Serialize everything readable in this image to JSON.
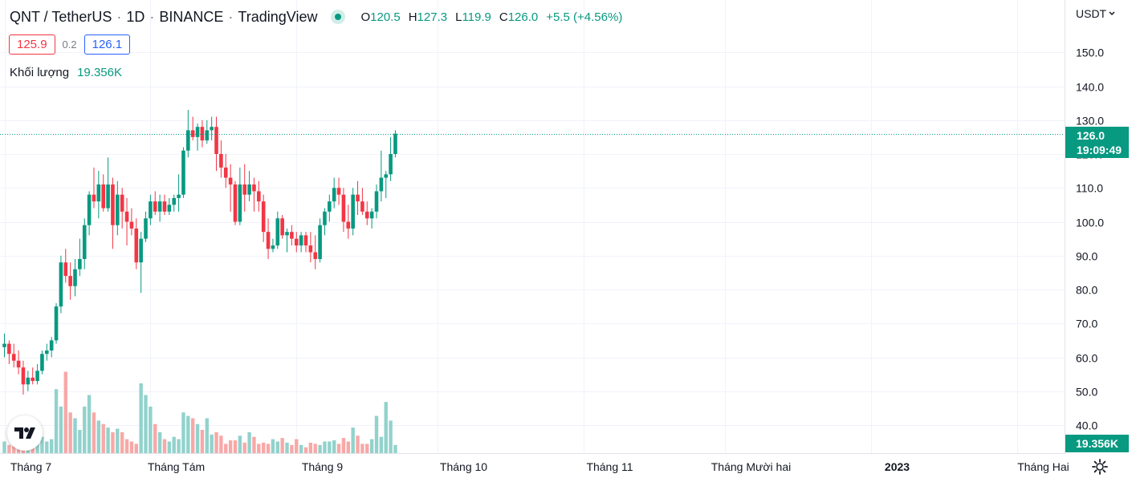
{
  "header": {
    "symbol": "QNT / TetherUS",
    "interval": "1D",
    "exchange": "BINANCE",
    "source": "TradingView",
    "open_label": "O",
    "open": "120.5",
    "high_label": "H",
    "high": "127.3",
    "low_label": "L",
    "low": "119.9",
    "close_label": "C",
    "close": "126.0",
    "change": "+5.5 (+4.56%)"
  },
  "bid": "125.9",
  "spread": "0.2",
  "ask": "126.1",
  "volume_legend": {
    "label": "Khối lượng",
    "value": "19.356K"
  },
  "currency": "USDT",
  "last_price_tag": {
    "price": "126.0",
    "countdown": "19:09:49"
  },
  "volume_tag": "19.356K",
  "colors": {
    "up": "#089981",
    "down": "#f23645",
    "up_vol": "#92d2cc",
    "down_vol": "#f7a9a7"
  },
  "chart_data": {
    "type": "candlestick",
    "title": "QNT / TetherUS · 1D · BINANCE",
    "y_ticks": [
      "40.0",
      "50.0",
      "60.0",
      "70.0",
      "80.0",
      "90.0",
      "100.0",
      "110.0",
      "120.0",
      "130.0",
      "140.0",
      "150.0"
    ],
    "ylim": [
      32,
      162
    ],
    "x_labels": [
      {
        "text": "Tháng 7",
        "bar": 0
      },
      {
        "text": "Tháng Tám",
        "bar": 31
      },
      {
        "text": "Tháng 9",
        "bar": 62
      },
      {
        "text": "Tháng 10",
        "bar": 92
      },
      {
        "text": "Tháng 11",
        "bar": 123
      },
      {
        "text": "Tháng Mười hai",
        "bar": 153
      },
      {
        "text": "2023",
        "bar": 184
      },
      {
        "text": "Tháng Hai",
        "bar": 215
      }
    ],
    "last_price": 126.0,
    "candles": [
      [
        63,
        67,
        60,
        64,
        10
      ],
      [
        64,
        65,
        58,
        61,
        7
      ],
      [
        61,
        64,
        57,
        59,
        6
      ],
      [
        59,
        62,
        55,
        57,
        5
      ],
      [
        57,
        59,
        49,
        52,
        8
      ],
      [
        52,
        56,
        50,
        54,
        6
      ],
      [
        54,
        57,
        52,
        53,
        5
      ],
      [
        53,
        58,
        52,
        56,
        9
      ],
      [
        56,
        62,
        55,
        61,
        14
      ],
      [
        61,
        64,
        59,
        62,
        10
      ],
      [
        62,
        66,
        60,
        65,
        12
      ],
      [
        65,
        76,
        64,
        75,
        55
      ],
      [
        75,
        90,
        73,
        88,
        40
      ],
      [
        88,
        92,
        82,
        84,
        70
      ],
      [
        84,
        88,
        77,
        81,
        35
      ],
      [
        81,
        89,
        78,
        86,
        30
      ],
      [
        86,
        95,
        84,
        89,
        20
      ],
      [
        89,
        101,
        86,
        99,
        40
      ],
      [
        99,
        109,
        96,
        108,
        50
      ],
      [
        108,
        116,
        104,
        106,
        35
      ],
      [
        106,
        115,
        101,
        111,
        28
      ],
      [
        111,
        114,
        103,
        104,
        25
      ],
      [
        104,
        119,
        103,
        111,
        22
      ],
      [
        111,
        113,
        92,
        99,
        18
      ],
      [
        99,
        112,
        96,
        108,
        21
      ],
      [
        108,
        110,
        98,
        103,
        18
      ],
      [
        103,
        107,
        93,
        100,
        12
      ],
      [
        100,
        104,
        96,
        98,
        10
      ],
      [
        98,
        101,
        86,
        88,
        8
      ],
      [
        88,
        97,
        79,
        95,
        60
      ],
      [
        95,
        103,
        94,
        101,
        50
      ],
      [
        101,
        108,
        99,
        106,
        40
      ],
      [
        106,
        109,
        102,
        103,
        25
      ],
      [
        103,
        108,
        100,
        106,
        18
      ],
      [
        106,
        108,
        102,
        103,
        12
      ],
      [
        103,
        107,
        102,
        105,
        10
      ],
      [
        105,
        108,
        103,
        107,
        14
      ],
      [
        107,
        114,
        103,
        108,
        12
      ],
      [
        108,
        122,
        107,
        121,
        35
      ],
      [
        121,
        133,
        119,
        127,
        32
      ],
      [
        127,
        131,
        124,
        125,
        30
      ],
      [
        125,
        129,
        121,
        128,
        25
      ],
      [
        128,
        130,
        122,
        124,
        20
      ],
      [
        124,
        130,
        123,
        127,
        30
      ],
      [
        127,
        131,
        124,
        128,
        16
      ],
      [
        128,
        131,
        115,
        120,
        18
      ],
      [
        120,
        124,
        113,
        116,
        15
      ],
      [
        116,
        120,
        110,
        113,
        8
      ],
      [
        113,
        117,
        103,
        111,
        11
      ],
      [
        111,
        112,
        99,
        100,
        11
      ],
      [
        100,
        116,
        99,
        111,
        15
      ],
      [
        111,
        117,
        103,
        108,
        9
      ],
      [
        108,
        115,
        106,
        111,
        18
      ],
      [
        111,
        113,
        103,
        109,
        14
      ],
      [
        109,
        112,
        103,
        106,
        8
      ],
      [
        106,
        108,
        94,
        97,
        9
      ],
      [
        97,
        101,
        89,
        92,
        8
      ],
      [
        92,
        95,
        91,
        93,
        12
      ],
      [
        93,
        103,
        92,
        101,
        10
      ],
      [
        101,
        102,
        95,
        96,
        13
      ],
      [
        96,
        98,
        91,
        97,
        9
      ],
      [
        97,
        99,
        93,
        95,
        7
      ],
      [
        95,
        97,
        91,
        93,
        12
      ],
      [
        93,
        97,
        91,
        96,
        7
      ],
      [
        96,
        97,
        91,
        93,
        5
      ],
      [
        93,
        97,
        88,
        91,
        9
      ],
      [
        91,
        96,
        86,
        89,
        8
      ],
      [
        89,
        101,
        88,
        99,
        7
      ],
      [
        99,
        104,
        96,
        103,
        10
      ],
      [
        103,
        108,
        100,
        106,
        10
      ],
      [
        106,
        113,
        104,
        110,
        11
      ],
      [
        110,
        113,
        105,
        108,
        8
      ],
      [
        108,
        110,
        97,
        100,
        13
      ],
      [
        100,
        105,
        95,
        98,
        10
      ],
      [
        98,
        110,
        96,
        108,
        22
      ],
      [
        108,
        112,
        102,
        106,
        15
      ],
      [
        106,
        110,
        102,
        103,
        8
      ],
      [
        103,
        106,
        99,
        101,
        8
      ],
      [
        101,
        104,
        98,
        103,
        12
      ],
      [
        103,
        111,
        101,
        109,
        32
      ],
      [
        109,
        121,
        106,
        113,
        14
      ],
      [
        113,
        115,
        107,
        114,
        44
      ],
      [
        114,
        125,
        112,
        120,
        28
      ],
      [
        120,
        127,
        119,
        126,
        7
      ]
    ]
  }
}
